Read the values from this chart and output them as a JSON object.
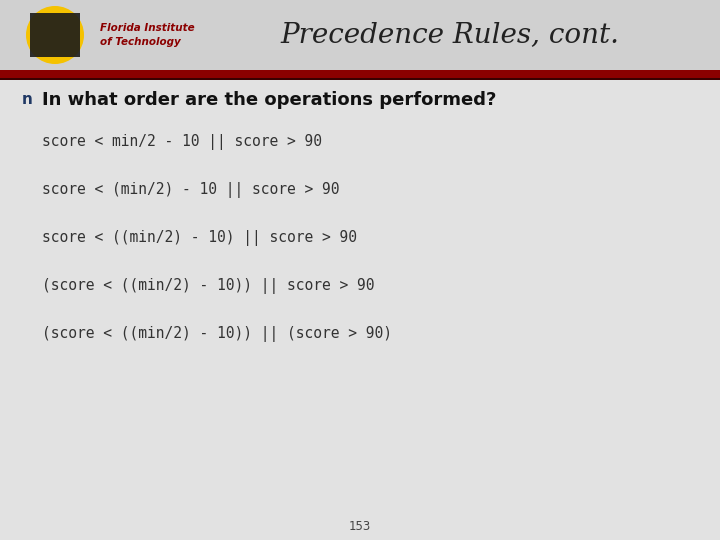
{
  "title": "Precedence Rules, cont.",
  "title_fontsize": 20,
  "title_style": "italic",
  "title_color": "#222222",
  "bg_color": "#e2e2e2",
  "header_bg": "#d0d0d0",
  "red_line_color": "#8b0000",
  "dark_red_line_color": "#5a0000",
  "bullet_color": "#1f3864",
  "bullet_text": "In what order are the operations performed?",
  "bullet_fontsize": 13,
  "code_lines": [
    "score < min/2 - 10 || score > 90",
    "score < (min/2) - 10 || score > 90",
    "score < ((min/2) - 10) || score > 90",
    "(score < ((min/2) - 10)) || score > 90",
    "(score < ((min/2) - 10)) || (score > 90)"
  ],
  "code_fontsize": 10.5,
  "code_color": "#333333",
  "page_number": "153",
  "logo_yellow": "#f5c200",
  "logo_dark": "#1a1a1a",
  "logo_red": "#8b0000"
}
